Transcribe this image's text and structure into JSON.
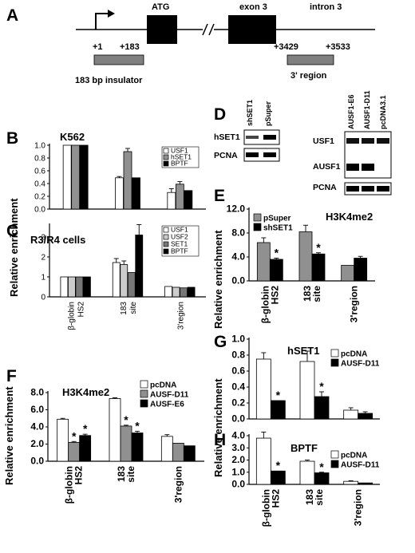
{
  "panels": {
    "A": "A",
    "B": "B",
    "C": "C",
    "D": "D",
    "E": "E",
    "F": "F",
    "G": "G",
    "H": "H"
  },
  "gene_map": {
    "atg": "ATG",
    "exon3": "exon 3",
    "intron3": "intron 3",
    "pos_1": "+1",
    "pos_183": "+183",
    "pos_3429": "+3429",
    "pos_3533": "+3533",
    "insulator_label": "183 bp insulator",
    "region_label": "3' region",
    "colors": {
      "line": "#000000",
      "exon": "#000000",
      "probe": "#808080"
    }
  },
  "blots": {
    "left": {
      "lanes": [
        "shSET1",
        "pSuper"
      ],
      "rows": [
        "hSET1",
        "PCNA"
      ]
    },
    "right": {
      "lanes": [
        "AUSF1-E6",
        "AUSF1-D11",
        "pcDNA3.1"
      ],
      "rows": [
        "USF1",
        "AUSF1",
        "PCNA"
      ]
    }
  },
  "shared_ylabels": {
    "BC": "Relative enrichment",
    "E": "Relative enrichment",
    "F": "Relative enrichment",
    "GH": "Relative enrichment"
  },
  "chart_data": [
    {
      "id": "B",
      "type": "bar",
      "title": "K562",
      "categories": [
        "β-globin HS2",
        "183 site",
        "3'region"
      ],
      "series": [
        {
          "name": "USF1",
          "color": "#ffffff",
          "values": [
            1.0,
            0.49,
            0.26
          ],
          "errors": [
            0,
            0.02,
            0.06
          ]
        },
        {
          "name": "hSET1",
          "color": "#909090",
          "values": [
            1.0,
            0.9,
            0.39
          ],
          "errors": [
            0,
            0.05,
            0.04
          ]
        },
        {
          "name": "BPTF",
          "color": "#000000",
          "values": [
            1.0,
            0.49,
            0.29
          ],
          "errors": [
            0,
            0,
            0
          ]
        }
      ],
      "yticks": [
        0.0,
        0.2,
        0.4,
        0.6,
        0.8,
        1.0
      ],
      "ylim": [
        0,
        1.0
      ],
      "legend": "top-right"
    },
    {
      "id": "C",
      "type": "bar",
      "title": "R3/R4 cells",
      "categories": [
        "β-globin HS2",
        "183 site",
        "3'region"
      ],
      "series": [
        {
          "name": "USF1",
          "color": "#ffffff",
          "values": [
            1.0,
            1.72,
            0.52
          ],
          "errors": [
            0,
            0.2,
            0
          ]
        },
        {
          "name": "USF2",
          "color": "#cccccc",
          "values": [
            1.0,
            1.62,
            0.48
          ],
          "errors": [
            0,
            0.18,
            0
          ]
        },
        {
          "name": "SET1",
          "color": "#777777",
          "values": [
            1.0,
            1.22,
            0.45
          ],
          "errors": [
            0,
            0,
            0
          ]
        },
        {
          "name": "BPTF",
          "color": "#000000",
          "values": [
            1.0,
            3.1,
            0.48
          ],
          "errors": [
            0,
            0.52,
            0
          ]
        }
      ],
      "yticks": [
        0,
        1,
        2,
        3
      ],
      "ylim": [
        0,
        3.6
      ],
      "legend": "top-right"
    },
    {
      "id": "E",
      "type": "bar",
      "title": "H3K4me2",
      "categories": [
        "β-globin HS2",
        "183 site",
        "3'region"
      ],
      "series": [
        {
          "name": "pSuper",
          "color": "#909090",
          "values": [
            6.4,
            8.2,
            2.6
          ],
          "errors": [
            0.8,
            1.1,
            0
          ]
        },
        {
          "name": "shSET1",
          "color": "#000000",
          "values": [
            3.6,
            4.5,
            3.8
          ],
          "errors": [
            0.2,
            0.2,
            0.3
          ]
        }
      ],
      "significance": [
        [
          false,
          true
        ],
        [
          false,
          true
        ],
        [
          false,
          false
        ]
      ],
      "yticks": [
        0.0,
        4.0,
        8.0,
        12.0
      ],
      "ylim": [
        0,
        12.0
      ],
      "legend": "top-left"
    },
    {
      "id": "F",
      "type": "bar",
      "title": "H3K4me2",
      "categories": [
        "β-globin HS2",
        "183 site",
        "3'region"
      ],
      "series": [
        {
          "name": "pcDNA",
          "color": "#ffffff",
          "values": [
            4.9,
            7.3,
            2.9
          ],
          "errors": [
            0.1,
            0.1,
            0.2
          ]
        },
        {
          "name": "AUSF-D11",
          "color": "#909090",
          "values": [
            2.2,
            4.1,
            2.1
          ],
          "errors": [
            0.1,
            0.1,
            0
          ]
        },
        {
          "name": "AUSF-E6",
          "color": "#000000",
          "values": [
            3.0,
            3.3,
            1.8
          ],
          "errors": [
            0.15,
            0.2,
            0
          ]
        }
      ],
      "significance": [
        [
          false,
          true,
          true
        ],
        [
          false,
          true,
          true
        ],
        [
          false,
          false,
          false
        ]
      ],
      "yticks": [
        0.0,
        2.0,
        4.0,
        6.0,
        8.0
      ],
      "ylim": [
        0,
        8.0
      ],
      "legend": "top-right"
    },
    {
      "id": "G",
      "type": "bar",
      "title": "hSET1",
      "categories": [
        "β-globin HS2",
        "183 site",
        "3'region"
      ],
      "series": [
        {
          "name": "pcDNA",
          "color": "#ffffff",
          "values": [
            0.75,
            0.72,
            0.11
          ],
          "errors": [
            0.08,
            0.13,
            0.03
          ]
        },
        {
          "name": "AUSF-D11",
          "color": "#000000",
          "values": [
            0.23,
            0.28,
            0.07
          ],
          "errors": [
            0,
            0.06,
            0.02
          ]
        }
      ],
      "significance": [
        [
          false,
          true
        ],
        [
          false,
          true
        ],
        [
          false,
          false
        ]
      ],
      "yticks": [
        0.0,
        0.2,
        0.4,
        0.6,
        0.8,
        1.0
      ],
      "ylim": [
        0,
        1.0
      ],
      "legend": "top-right"
    },
    {
      "id": "H",
      "type": "bar",
      "title": "BPTF",
      "categories": [
        "β-globin HS2",
        "183 site",
        "3'region"
      ],
      "series": [
        {
          "name": "pcDNA",
          "color": "#ffffff",
          "values": [
            3.8,
            1.9,
            0.25
          ],
          "errors": [
            0.5,
            0.1,
            0.05
          ]
        },
        {
          "name": "AUSF-D11",
          "color": "#000000",
          "values": [
            1.1,
            0.95,
            0.12
          ],
          "errors": [
            0,
            0.05,
            0
          ]
        }
      ],
      "significance": [
        [
          false,
          true
        ],
        [
          false,
          true
        ],
        [
          false,
          false
        ]
      ],
      "yticks": [
        0.0,
        1.0,
        2.0,
        3.0,
        4.0
      ],
      "ylim": [
        0,
        4.0
      ],
      "legend": "top-right"
    }
  ]
}
